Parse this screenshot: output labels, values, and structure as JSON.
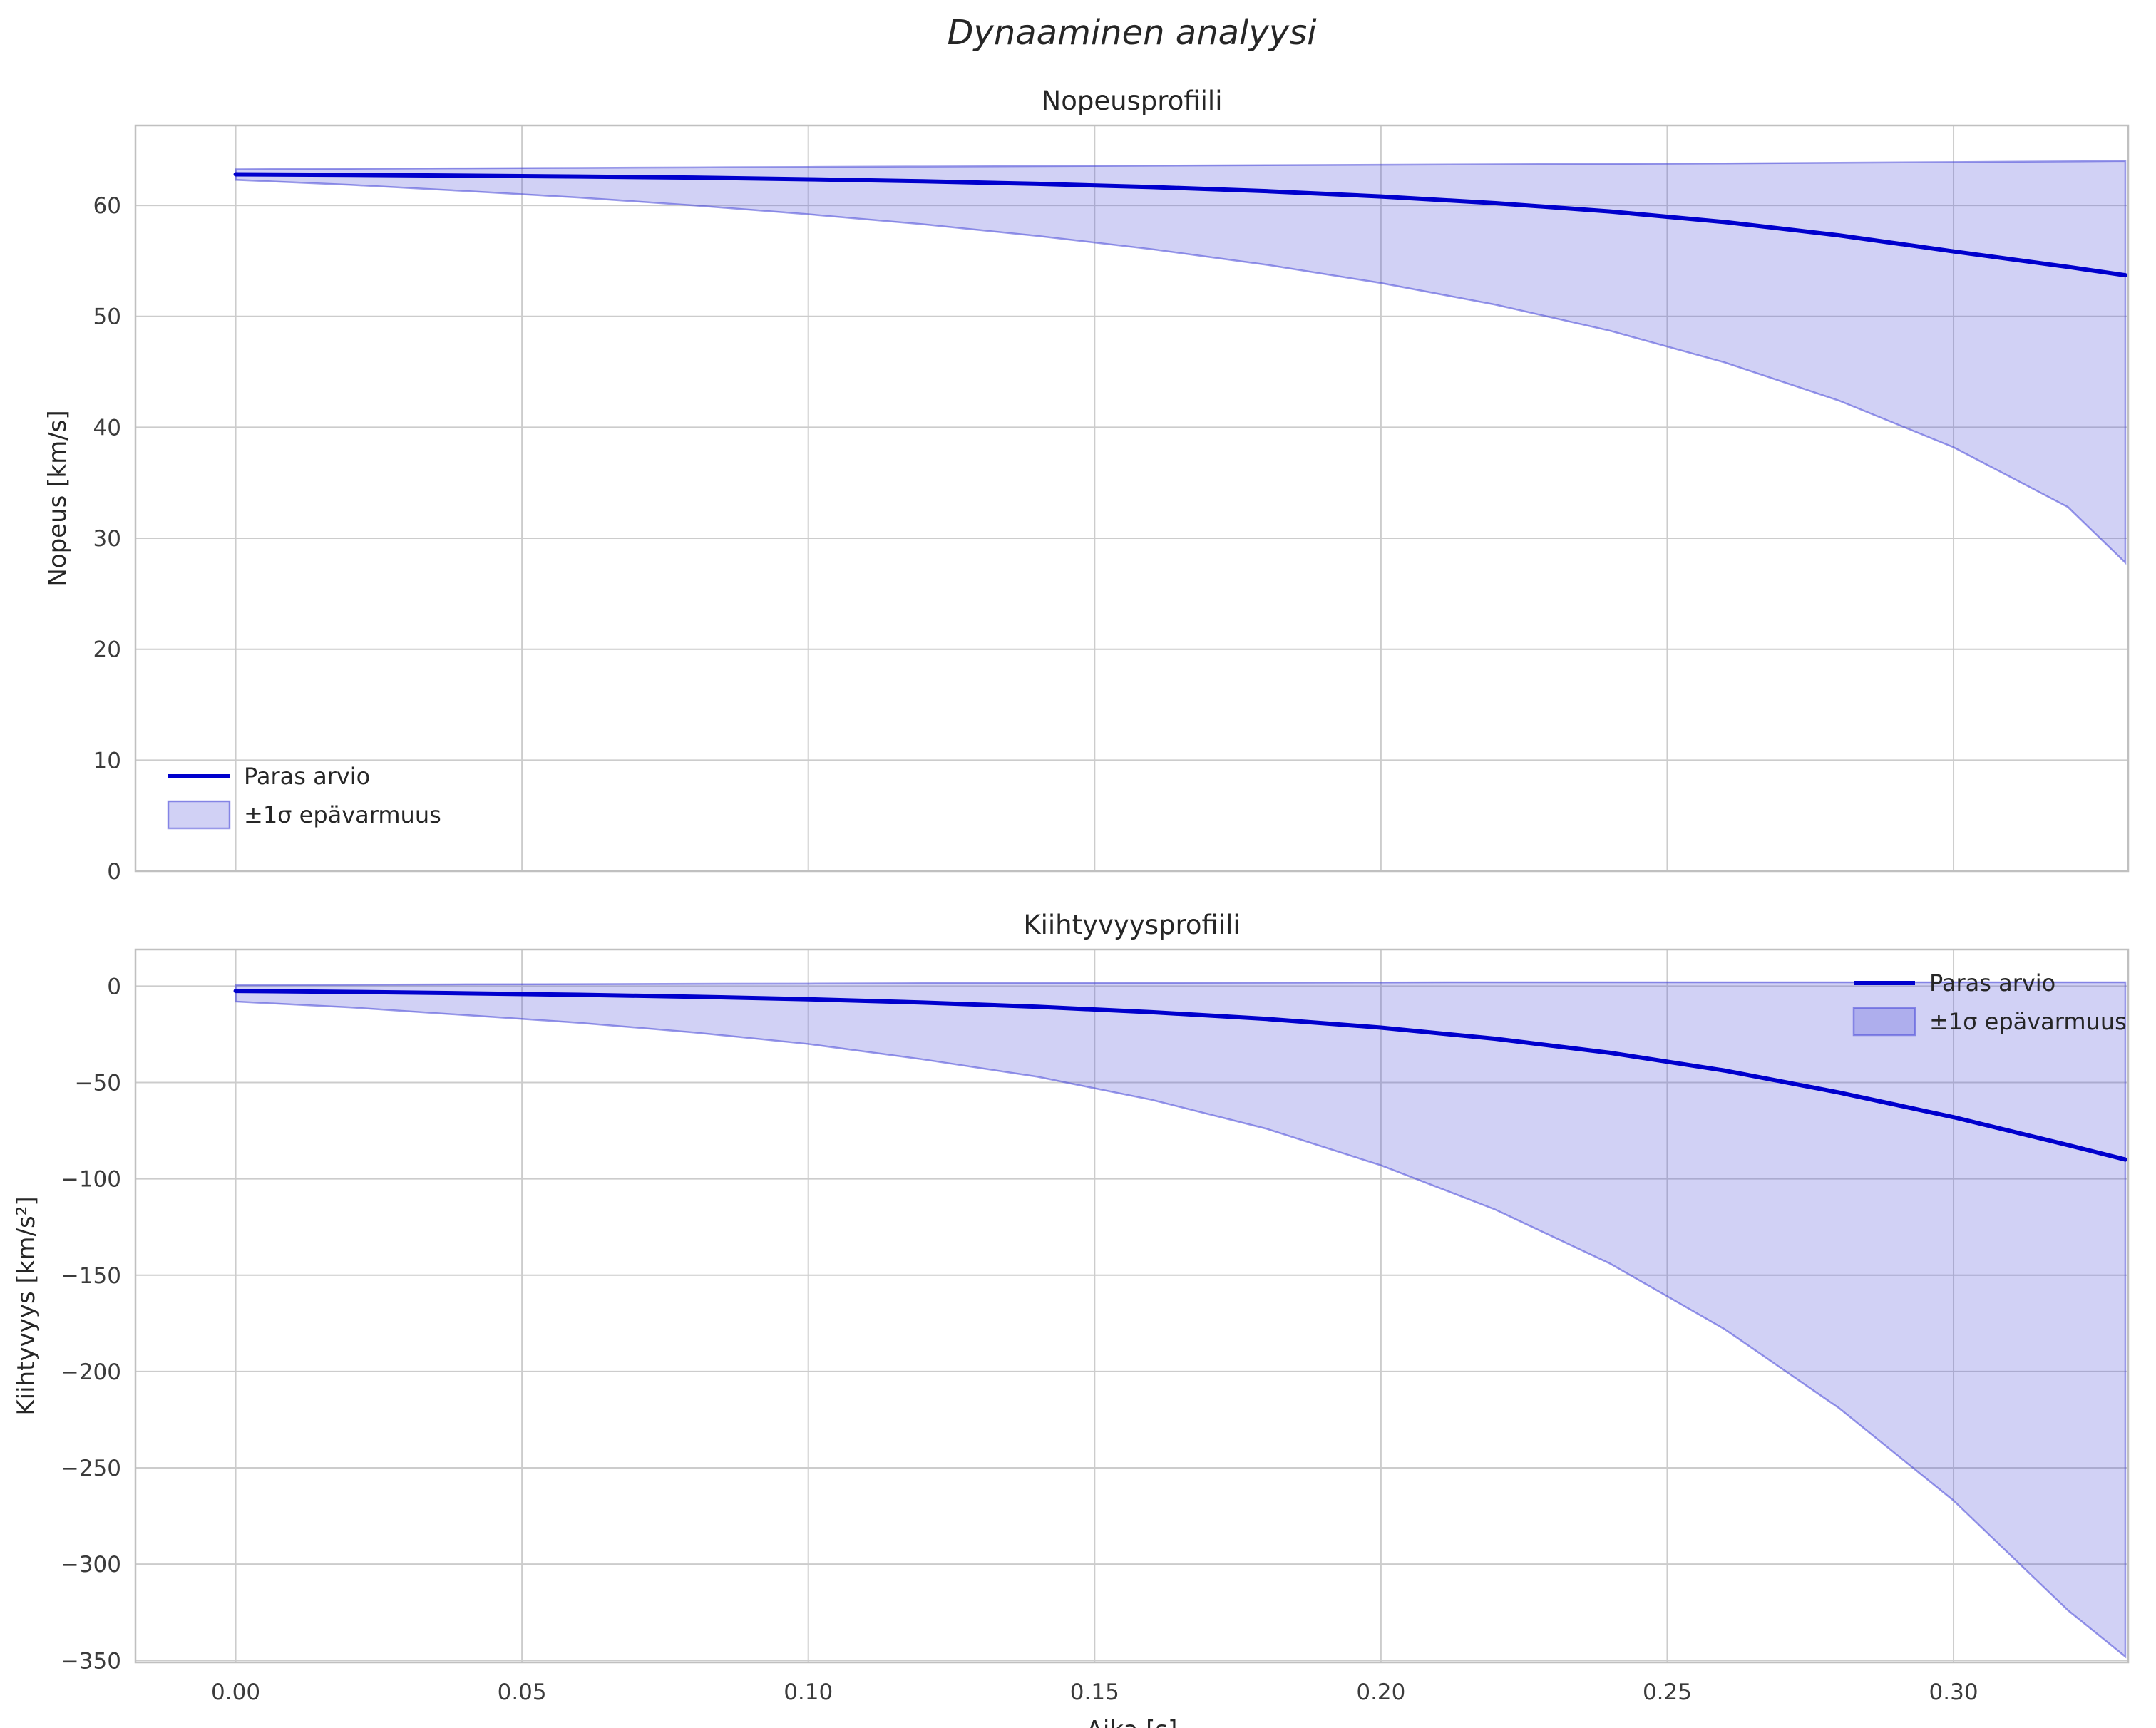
{
  "figure": {
    "title": "Dynaaminen analyysi",
    "xlabel": "Aika [s]",
    "colors": {
      "line": "#0000cd",
      "band_fill": "rgba(70,70,215,0.25)",
      "band_edge": "rgba(70,70,215,0.55)",
      "grid": "#cccccc",
      "spine": "#c0c0c0",
      "text": "#262626",
      "tick_text": "#3b3b3b"
    }
  },
  "chart_data": [
    {
      "type": "line",
      "name": "velocity-chart",
      "title": "Nopeusprofiili",
      "ylabel": "Nopeus [km/s]",
      "xlabel": "",
      "xlim": [
        -0.0175,
        0.3305
      ],
      "ylim": [
        0,
        67.2
      ],
      "xticks": [
        0,
        0.05,
        0.1,
        0.15,
        0.2,
        0.25,
        0.3
      ],
      "xtick_labels": [
        "0.00",
        "0.05",
        "0.10",
        "0.15",
        "0.20",
        "0.25",
        "0.30"
      ],
      "show_xtick_labels": false,
      "yticks": [
        0,
        10,
        20,
        30,
        40,
        50,
        60
      ],
      "ytick_labels": [
        "0",
        "10",
        "20",
        "30",
        "40",
        "50",
        "60"
      ],
      "grid": true,
      "legend": {
        "loc": "lower-left",
        "line_label": "Paras arvio",
        "band_label": "±1σ epävarmuus"
      },
      "x": [
        0,
        0.02,
        0.04,
        0.06,
        0.08,
        0.1,
        0.12,
        0.14,
        0.16,
        0.18,
        0.2,
        0.22,
        0.24,
        0.26,
        0.28,
        0.3,
        0.32,
        0.33
      ],
      "series": [
        {
          "name": "Paras arvio",
          "values": [
            62.8,
            62.75,
            62.68,
            62.6,
            62.5,
            62.35,
            62.17,
            61.94,
            61.65,
            61.28,
            60.8,
            60.2,
            59.45,
            58.5,
            57.3,
            55.85,
            54.45,
            53.7
          ]
        }
      ],
      "band": {
        "name": "±1σ epävarmuus",
        "upper": [
          63.25,
          63.3,
          63.34,
          63.38,
          63.42,
          63.46,
          63.5,
          63.54,
          63.58,
          63.62,
          63.66,
          63.7,
          63.74,
          63.78,
          63.84,
          63.9,
          63.96,
          64.0
        ],
        "lower": [
          62.3,
          61.85,
          61.3,
          60.7,
          60.0,
          59.2,
          58.3,
          57.25,
          56.05,
          54.65,
          53.0,
          51.05,
          48.7,
          45.85,
          42.4,
          38.2,
          32.8,
          27.8
        ]
      }
    },
    {
      "type": "line",
      "name": "acceleration-chart",
      "title": "Kiihtyvyysprofiili",
      "ylabel": "Kiihtyvyys [km/s²]",
      "xlabel": "Aika [s]",
      "xlim": [
        -0.0175,
        0.3305
      ],
      "ylim": [
        -351,
        19
      ],
      "xticks": [
        0,
        0.05,
        0.1,
        0.15,
        0.2,
        0.25,
        0.3
      ],
      "xtick_labels": [
        "0.00",
        "0.05",
        "0.10",
        "0.15",
        "0.20",
        "0.25",
        "0.30"
      ],
      "show_xtick_labels": true,
      "yticks": [
        0,
        -50,
        -100,
        -150,
        -200,
        -250,
        -300,
        -350
      ],
      "ytick_labels": [
        "0",
        "−50",
        "−100",
        "−150",
        "−200",
        "−250",
        "−300",
        "−350"
      ],
      "grid": true,
      "legend": {
        "loc": "upper-right",
        "line_label": "Paras arvio",
        "band_label": "±1σ epävarmuus"
      },
      "x": [
        0,
        0.02,
        0.04,
        0.06,
        0.08,
        0.1,
        0.12,
        0.14,
        0.16,
        0.18,
        0.2,
        0.22,
        0.24,
        0.26,
        0.28,
        0.3,
        0.32,
        0.33
      ],
      "series": [
        {
          "name": "Paras arvio",
          "values": [
            -2.5,
            -3.0,
            -3.7,
            -4.5,
            -5.5,
            -6.8,
            -8.5,
            -10.7,
            -13.5,
            -17.0,
            -21.5,
            -27.3,
            -34.6,
            -43.8,
            -55.2,
            -68.0,
            -82.5,
            -90.0
          ]
        }
      ],
      "band": {
        "name": "±1σ epävarmuus",
        "upper": [
          0.5,
          0.7,
          0.9,
          1.0,
          1.2,
          1.3,
          1.5,
          1.6,
          1.7,
          1.8,
          1.9,
          2.0,
          2.0,
          2.0,
          2.0,
          2.0,
          2.0,
          2.0
        ],
        "lower": [
          -8,
          -11,
          -15,
          -19,
          -24,
          -30,
          -38,
          -47,
          -59,
          -74,
          -93,
          -116,
          -144,
          -178,
          -219,
          -267,
          -324,
          -348
        ]
      }
    }
  ]
}
